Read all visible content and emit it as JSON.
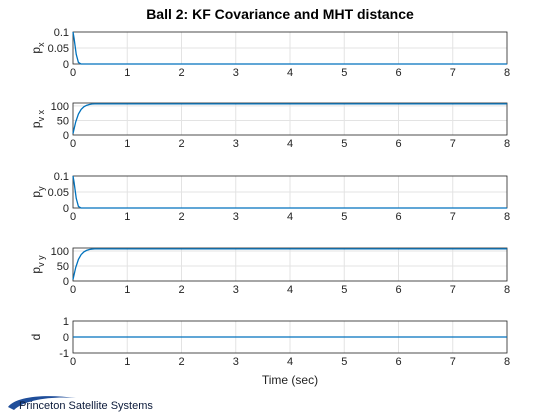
{
  "chart_data": {
    "type": "line",
    "title": "Ball 2: KF Covariance and MHT distance",
    "xlabel": "Time (sec)",
    "xlim": [
      0,
      8
    ],
    "xticks": [
      "0",
      "1",
      "2",
      "3",
      "4",
      "5",
      "6",
      "7",
      "8"
    ],
    "grid": true,
    "color": "#0072BD",
    "panels": [
      {
        "ylabel": "p",
        "ylabel_sub": "x",
        "ylim": [
          0,
          0.1
        ],
        "yticks": [
          {
            "v": 0,
            "label": "0"
          },
          {
            "v": 0.05,
            "label": "0.05"
          },
          {
            "v": 0.1,
            "label": "0.1"
          }
        ],
        "x": [
          0,
          0.02,
          0.06,
          0.1,
          0.15,
          8
        ],
        "y": [
          0.1,
          0.08,
          0.03,
          0.005,
          0,
          0
        ]
      },
      {
        "ylabel": "p",
        "ylabel_sub": "v x",
        "ylim": [
          0,
          110
        ],
        "yticks": [
          {
            "v": 0,
            "label": "0"
          },
          {
            "v": 50,
            "label": "50"
          },
          {
            "v": 100,
            "label": "100"
          }
        ],
        "x": [
          0,
          0.05,
          0.1,
          0.15,
          0.2,
          0.25,
          0.3,
          0.35,
          0.4,
          0.5,
          8
        ],
        "y": [
          5,
          45,
          72,
          88,
          97,
          102,
          105,
          106.5,
          107,
          107,
          107
        ]
      },
      {
        "ylabel": "p",
        "ylabel_sub": "y",
        "ylim": [
          0,
          0.1
        ],
        "yticks": [
          {
            "v": 0,
            "label": "0"
          },
          {
            "v": 0.05,
            "label": "0.05"
          },
          {
            "v": 0.1,
            "label": "0.1"
          }
        ],
        "x": [
          0,
          0.02,
          0.06,
          0.1,
          0.15,
          8
        ],
        "y": [
          0.1,
          0.08,
          0.03,
          0.005,
          0,
          0
        ]
      },
      {
        "ylabel": "p",
        "ylabel_sub": "v y",
        "ylim": [
          0,
          110
        ],
        "yticks": [
          {
            "v": 0,
            "label": "0"
          },
          {
            "v": 50,
            "label": "50"
          },
          {
            "v": 100,
            "label": "100"
          }
        ],
        "x": [
          0,
          0.05,
          0.1,
          0.15,
          0.2,
          0.25,
          0.3,
          0.35,
          0.4,
          0.5,
          8
        ],
        "y": [
          5,
          45,
          72,
          88,
          97,
          102,
          105,
          106.5,
          107,
          107,
          107
        ]
      },
      {
        "ylabel": "d",
        "ylabel_sub": "",
        "ylim": [
          -1,
          1
        ],
        "yticks": [
          {
            "v": -1,
            "label": "-1"
          },
          {
            "v": 0,
            "label": "0"
          },
          {
            "v": 1,
            "label": "1"
          }
        ],
        "x": [
          0,
          8
        ],
        "y": [
          0,
          0
        ]
      }
    ]
  },
  "logo": {
    "text": "Princeton Satellite Systems",
    "color": "#1f4e9a"
  }
}
